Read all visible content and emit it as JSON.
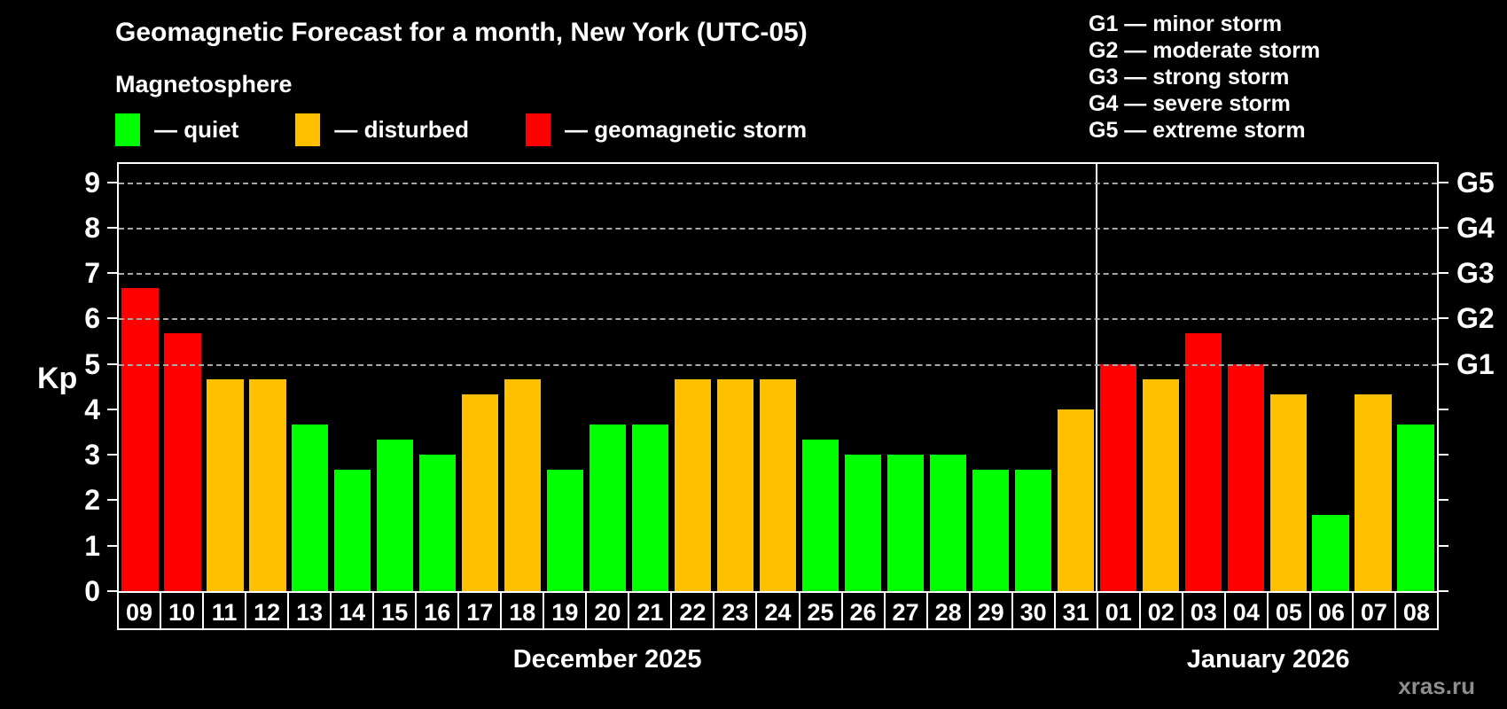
{
  "header": {
    "title": "Geomagnetic Forecast for a month, New York (UTC-05)",
    "subtitle": "Magnetosphere"
  },
  "legend": {
    "items": [
      {
        "key": "quiet",
        "swatch": "#00ff00",
        "label": "— quiet"
      },
      {
        "key": "disturbed",
        "swatch": "#ffc000",
        "label": "— disturbed"
      },
      {
        "key": "storm",
        "swatch": "#ff0000",
        "label": "— geomagnetic storm"
      }
    ]
  },
  "g_scale_legend": {
    "items": [
      "G1 — minor storm",
      "G2 — moderate storm",
      "G3 — strong storm",
      "G4 — severe storm",
      "G5 — extreme storm"
    ]
  },
  "axes": {
    "y_label": "Kp",
    "y_max": 9.4,
    "y_ticks": [
      0,
      1,
      2,
      3,
      4,
      5,
      6,
      7,
      8,
      9
    ],
    "gridline_values": [
      5,
      6,
      7,
      8,
      9
    ],
    "right_labels": [
      {
        "value": 5,
        "label": "G1"
      },
      {
        "value": 6,
        "label": "G2"
      },
      {
        "value": 7,
        "label": "G3"
      },
      {
        "value": 8,
        "label": "G4"
      },
      {
        "value": 9,
        "label": "G5"
      }
    ]
  },
  "chart_data": {
    "type": "bar",
    "title": "Geomagnetic Forecast for a month, New York (UTC-05)",
    "ylabel": "Kp",
    "ylim": [
      0,
      9.4
    ],
    "grid": "dashed horizontal at Kp 5-9",
    "legend_position": "top",
    "status_colors": {
      "quiet": "#00ff00",
      "disturbed": "#ffc000",
      "storm": "#ff0000"
    },
    "months": [
      {
        "label": "December 2025",
        "days": 23
      },
      {
        "label": "January 2026",
        "days": 8
      }
    ],
    "categories": [
      "09",
      "10",
      "11",
      "12",
      "13",
      "14",
      "15",
      "16",
      "17",
      "18",
      "19",
      "20",
      "21",
      "22",
      "23",
      "24",
      "25",
      "26",
      "27",
      "28",
      "29",
      "30",
      "31",
      "01",
      "02",
      "03",
      "04",
      "05",
      "06",
      "07",
      "08"
    ],
    "bars": [
      {
        "day": "09",
        "month": "December 2025",
        "kp": 6.67,
        "status": "storm"
      },
      {
        "day": "10",
        "month": "December 2025",
        "kp": 5.67,
        "status": "storm"
      },
      {
        "day": "11",
        "month": "December 2025",
        "kp": 4.67,
        "status": "disturbed"
      },
      {
        "day": "12",
        "month": "December 2025",
        "kp": 4.67,
        "status": "disturbed"
      },
      {
        "day": "13",
        "month": "December 2025",
        "kp": 3.67,
        "status": "quiet"
      },
      {
        "day": "14",
        "month": "December 2025",
        "kp": 2.67,
        "status": "quiet"
      },
      {
        "day": "15",
        "month": "December 2025",
        "kp": 3.33,
        "status": "quiet"
      },
      {
        "day": "16",
        "month": "December 2025",
        "kp": 3.0,
        "status": "quiet"
      },
      {
        "day": "17",
        "month": "December 2025",
        "kp": 4.33,
        "status": "disturbed"
      },
      {
        "day": "18",
        "month": "December 2025",
        "kp": 4.67,
        "status": "disturbed"
      },
      {
        "day": "19",
        "month": "December 2025",
        "kp": 2.67,
        "status": "quiet"
      },
      {
        "day": "20",
        "month": "December 2025",
        "kp": 3.67,
        "status": "quiet"
      },
      {
        "day": "21",
        "month": "December 2025",
        "kp": 3.67,
        "status": "quiet"
      },
      {
        "day": "22",
        "month": "December 2025",
        "kp": 4.67,
        "status": "disturbed"
      },
      {
        "day": "23",
        "month": "December 2025",
        "kp": 4.67,
        "status": "disturbed"
      },
      {
        "day": "24",
        "month": "December 2025",
        "kp": 4.67,
        "status": "disturbed"
      },
      {
        "day": "25",
        "month": "December 2025",
        "kp": 3.33,
        "status": "quiet"
      },
      {
        "day": "26",
        "month": "December 2025",
        "kp": 3.0,
        "status": "quiet"
      },
      {
        "day": "27",
        "month": "December 2025",
        "kp": 3.0,
        "status": "quiet"
      },
      {
        "day": "28",
        "month": "December 2025",
        "kp": 3.0,
        "status": "quiet"
      },
      {
        "day": "29",
        "month": "December 2025",
        "kp": 2.67,
        "status": "quiet"
      },
      {
        "day": "30",
        "month": "December 2025",
        "kp": 2.67,
        "status": "quiet"
      },
      {
        "day": "31",
        "month": "December 2025",
        "kp": 4.0,
        "status": "disturbed"
      },
      {
        "day": "01",
        "month": "January 2026",
        "kp": 5.0,
        "status": "storm"
      },
      {
        "day": "02",
        "month": "January 2026",
        "kp": 4.67,
        "status": "disturbed"
      },
      {
        "day": "03",
        "month": "January 2026",
        "kp": 5.67,
        "status": "storm"
      },
      {
        "day": "04",
        "month": "January 2026",
        "kp": 5.0,
        "status": "storm"
      },
      {
        "day": "05",
        "month": "January 2026",
        "kp": 4.33,
        "status": "disturbed"
      },
      {
        "day": "06",
        "month": "January 2026",
        "kp": 1.67,
        "status": "quiet"
      },
      {
        "day": "07",
        "month": "January 2026",
        "kp": 4.33,
        "status": "disturbed"
      },
      {
        "day": "08",
        "month": "January 2026",
        "kp": 3.67,
        "status": "quiet"
      }
    ]
  },
  "colors": {
    "background": "#000000",
    "axis": "#ffffff",
    "grid": "#a8a8a8",
    "text": "#ffffff",
    "watermark": "#8e8e8e"
  },
  "watermark": "xras.ru"
}
